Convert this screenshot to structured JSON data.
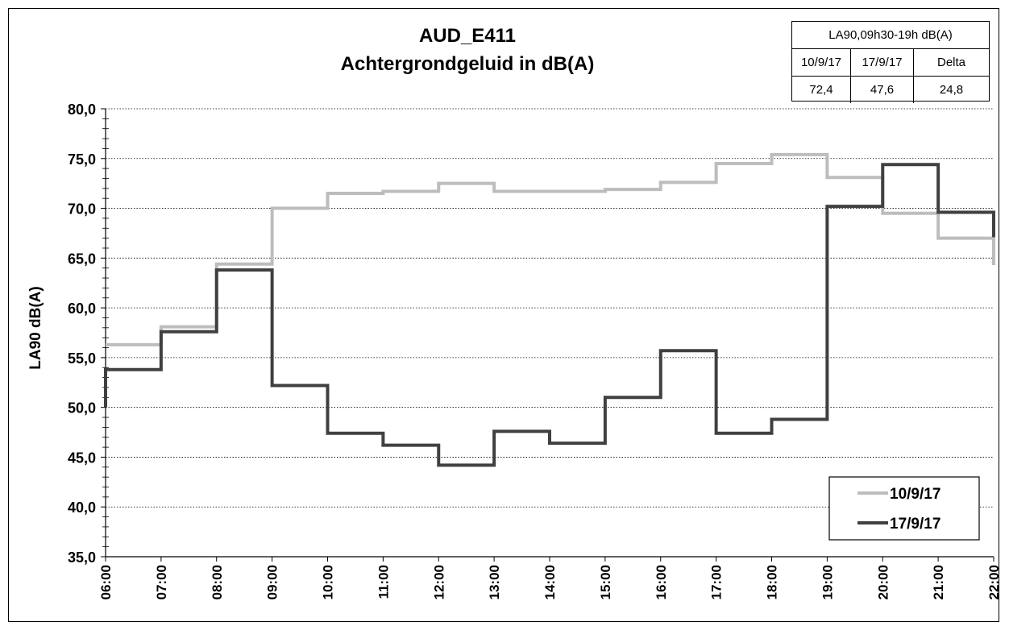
{
  "chart_data": {
    "type": "line",
    "step": true,
    "title": [
      "AUD_E411",
      "Achtergrondgeluid  in dB(A)"
    ],
    "ylabel": "LA90 dB(A)",
    "xlabel": "",
    "x_ticks": [
      "06:00",
      "07:00",
      "08:00",
      "09:00",
      "10:00",
      "11:00",
      "12:00",
      "13:00",
      "14:00",
      "15:00",
      "16:00",
      "17:00",
      "18:00",
      "19:00",
      "20:00",
      "21:00",
      "22:00"
    ],
    "y_ticks": [
      "35,0",
      "40,0",
      "45,0",
      "50,0",
      "55,0",
      "60,0",
      "65,0",
      "70,0",
      "75,0",
      "80,0"
    ],
    "ylim": [
      35,
      80
    ],
    "xlim_hours": [
      6,
      22
    ],
    "grid": "horizontal dotted",
    "legend_position": "bottom-right",
    "series": [
      {
        "name": "10/9/17",
        "color": "#bdbdbd",
        "values": [
          56.3,
          58.1,
          64.4,
          70.0,
          71.5,
          71.7,
          72.5,
          71.7,
          71.7,
          71.9,
          72.6,
          74.5,
          75.4,
          73.1,
          69.5,
          67.0
        ],
        "end_value": 64.3
      },
      {
        "name": "17/9/17",
        "color": "#404040",
        "start_value": 50.0,
        "values": [
          53.8,
          57.6,
          63.8,
          52.2,
          47.4,
          46.2,
          44.2,
          47.6,
          46.4,
          51.0,
          55.7,
          47.4,
          48.8,
          70.2,
          74.4,
          69.6
        ],
        "end_value": 67.1
      }
    ],
    "summary_table": {
      "header": "LA90,09h30-19h dB(A)",
      "columns": [
        "10/9/17",
        "17/9/17",
        "Delta"
      ],
      "values": [
        "72,4",
        "47,6",
        "24,8"
      ]
    }
  }
}
